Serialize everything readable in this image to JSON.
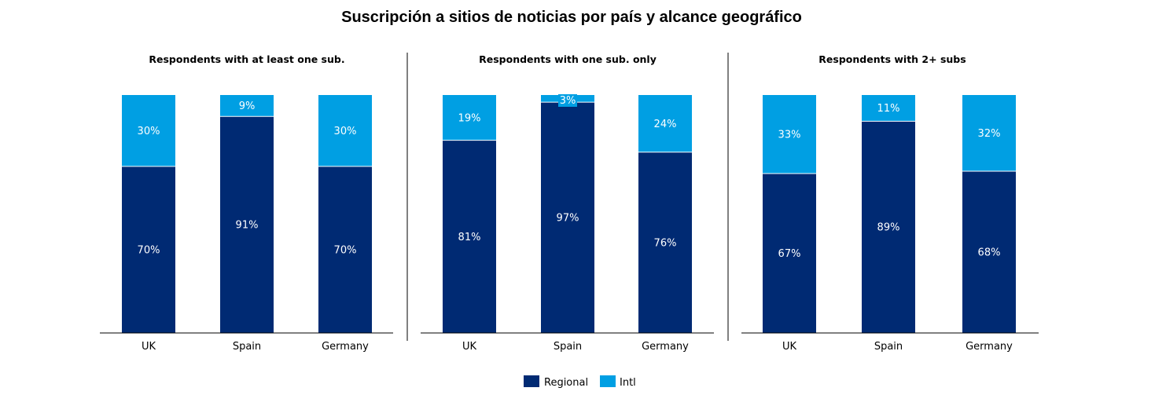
{
  "title": "Suscripción a sitios de noticias por país y alcance geográfico",
  "colors": {
    "regional": "#002a73",
    "intl": "#009fe3",
    "divider": "#000000"
  },
  "legend": [
    {
      "name": "Regional",
      "color": "#002a73"
    },
    {
      "name": "Intl",
      "color": "#009fe3"
    }
  ],
  "chart_data": [
    {
      "type": "bar",
      "stacked": true,
      "title": "Respondents with at least one sub.",
      "categories": [
        "UK",
        "Spain",
        "Germany"
      ],
      "series": [
        {
          "name": "Regional",
          "values": [
            70,
            91,
            70
          ],
          "labels": [
            "70%",
            "91%",
            "70%"
          ]
        },
        {
          "name": "Intl",
          "values": [
            30,
            9,
            30
          ],
          "labels": [
            "30%",
            "9%",
            "30%"
          ]
        }
      ],
      "ylim": [
        0,
        100
      ],
      "legend_position": "bottom"
    },
    {
      "type": "bar",
      "stacked": true,
      "title": "Respondents with one sub. only",
      "categories": [
        "UK",
        "Spain",
        "Germany"
      ],
      "series": [
        {
          "name": "Regional",
          "values": [
            81,
            97,
            76
          ],
          "labels": [
            "81%",
            "97%",
            "76%"
          ]
        },
        {
          "name": "Intl",
          "values": [
            19,
            3,
            24
          ],
          "labels": [
            "19%",
            "3%",
            "24%"
          ]
        }
      ],
      "ylim": [
        0,
        100
      ],
      "legend_position": "bottom"
    },
    {
      "type": "bar",
      "stacked": true,
      "title": "Respondents with 2+ subs",
      "categories": [
        "UK",
        "Spain",
        "Germany"
      ],
      "series": [
        {
          "name": "Regional",
          "values": [
            67,
            89,
            68
          ],
          "labels": [
            "67%",
            "89%",
            "68%"
          ]
        },
        {
          "name": "Intl",
          "values": [
            33,
            11,
            32
          ],
          "labels": [
            "33%",
            "11%",
            "32%"
          ]
        }
      ],
      "ylim": [
        0,
        100
      ],
      "legend_position": "bottom"
    }
  ]
}
